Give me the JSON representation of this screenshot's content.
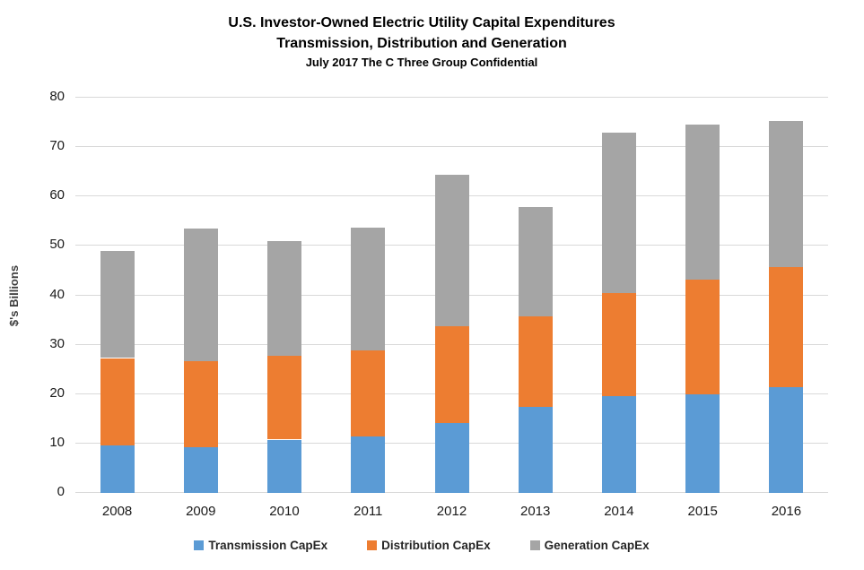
{
  "title": {
    "line1": "U.S. Investor-Owned Electric Utility Capital Expenditures",
    "line2": "Transmission, Distribution and Generation",
    "line3": "July 2017 The C Three Group Confidential"
  },
  "chart_data": {
    "type": "bar",
    "stacked": true,
    "title": "U.S. Investor-Owned Electric Utility Capital Expenditures — Transmission, Distribution and Generation",
    "subtitle": "July 2017 The C Three Group Confidential",
    "categories": [
      "2008",
      "2009",
      "2010",
      "2011",
      "2012",
      "2013",
      "2014",
      "2015",
      "2016"
    ],
    "series": [
      {
        "name": "Transmission CapEx",
        "color": "#5B9BD5",
        "values": [
          9.7,
          9.3,
          10.8,
          11.5,
          14.2,
          17.4,
          19.6,
          19.9,
          21.4
        ]
      },
      {
        "name": "Distribution CapEx",
        "color": "#ED7D31",
        "values": [
          17.6,
          17.3,
          17.0,
          17.4,
          19.6,
          18.4,
          20.9,
          23.2,
          24.3
        ]
      },
      {
        "name": "Generation CapEx",
        "color": "#A5A5A5",
        "values": [
          21.7,
          27.0,
          23.2,
          24.8,
          30.6,
          22.0,
          32.5,
          31.4,
          29.6
        ]
      }
    ],
    "stack_totals": [
      49.0,
      53.6,
      51.0,
      53.7,
      64.4,
      57.8,
      73.0,
      74.5,
      75.3
    ],
    "xlabel": "",
    "ylabel": "$'s Billions",
    "ylim": [
      0,
      80
    ],
    "ytick_step": 10,
    "grid": true,
    "legend_position": "bottom"
  }
}
